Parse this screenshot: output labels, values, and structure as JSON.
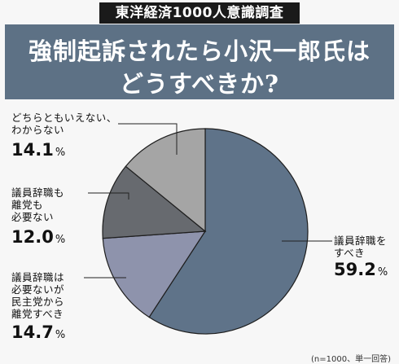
{
  "header_tag": "東洋経済1000人意識調査",
  "title": {
    "line1": "強制起訴されたら小沢一郎氏は",
    "line2": "どうすべきか?"
  },
  "chart_data": {
    "type": "pie",
    "title": "強制起訴されたら小沢一郎氏はどうすべきか?",
    "slices": [
      {
        "label": "議員辞職をすべき",
        "value": 59.2,
        "color": "#5f7389"
      },
      {
        "label": "議員辞職は必要ないが民主党から離党すべき",
        "value": 14.7,
        "color": "#8e93ac"
      },
      {
        "label": "議員辞職も離党も必要ない",
        "value": 12.0,
        "color": "#676a6f"
      },
      {
        "label": "どちらともいえない、わからない",
        "value": 14.1,
        "color": "#a5a5a5"
      }
    ]
  },
  "labels": {
    "s1_line1": "議員辞職を",
    "s1_line2": "すべき",
    "s1_pct": "59.2",
    "s2_line1": "議員辞職は",
    "s2_line2": "必要ないが",
    "s2_line3": "民主党から",
    "s2_line4": "離党すべき",
    "s2_pct": "14.7",
    "s3_line1": "議員辞職も",
    "s3_line2": "離党も",
    "s3_line3": "必要ない",
    "s3_pct": "12.0",
    "s4_line1": "どちらともいえない、",
    "s4_line2": "わからない",
    "s4_pct": "14.1",
    "unit": "%"
  },
  "note": "(n=1000、単一回答)"
}
